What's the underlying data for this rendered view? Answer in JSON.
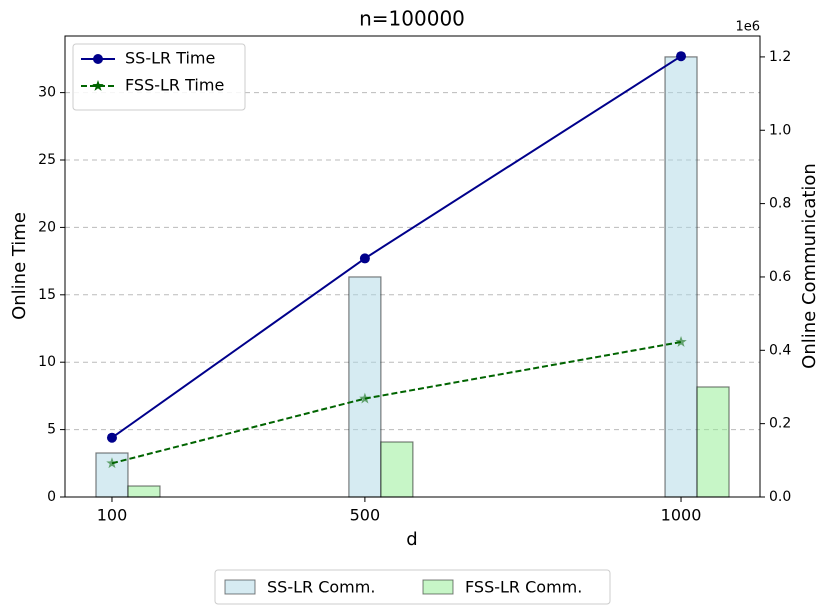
{
  "chart_data": {
    "type": "combo",
    "title": "n=100000",
    "x_label": "d",
    "y_label": "Online Time",
    "y2_label": "Online Communication",
    "y2_offset_label": "1e6",
    "x": [
      100,
      500,
      1000
    ],
    "xlim": [
      25.7,
      1124.9
    ],
    "xticks": [
      100,
      500,
      1000
    ],
    "ylim": [
      0,
      34.2
    ],
    "yticks": [
      0,
      5,
      10,
      15,
      20,
      25,
      30
    ],
    "y2lim": [
      0,
      1257000
    ],
    "y2ticks": [
      {
        "value": 0,
        "label": "0.0"
      },
      {
        "value": 200000,
        "label": "0.2"
      },
      {
        "value": 400000,
        "label": "0.4"
      },
      {
        "value": 600000,
        "label": "0.6"
      },
      {
        "value": 800000,
        "label": "0.8"
      },
      {
        "value": 1000000,
        "label": "1.0"
      },
      {
        "value": 1200000,
        "label": "1.2"
      }
    ],
    "grid": true,
    "legend": "upper left",
    "bar_legend": "below",
    "series": [
      {
        "name": "SS-LR Comm.",
        "type": "bar",
        "axis": "y2",
        "color": "#add8e6",
        "values": [
          120000,
          600000,
          1200000
        ]
      },
      {
        "name": "FSS-LR Comm.",
        "type": "bar",
        "axis": "y2",
        "color": "#90ee90",
        "values": [
          30000,
          150000,
          300000
        ]
      },
      {
        "name": "SS-LR Time",
        "type": "line",
        "color": "#00008b",
        "marker": "circle",
        "linestyle": "solid",
        "values": [
          4.4,
          17.7,
          32.7
        ]
      },
      {
        "name": "FSS-LR Time",
        "type": "line",
        "color": "#006400",
        "marker": "star",
        "linestyle": "dashed",
        "values": [
          2.5,
          7.3,
          11.5
        ]
      }
    ]
  }
}
